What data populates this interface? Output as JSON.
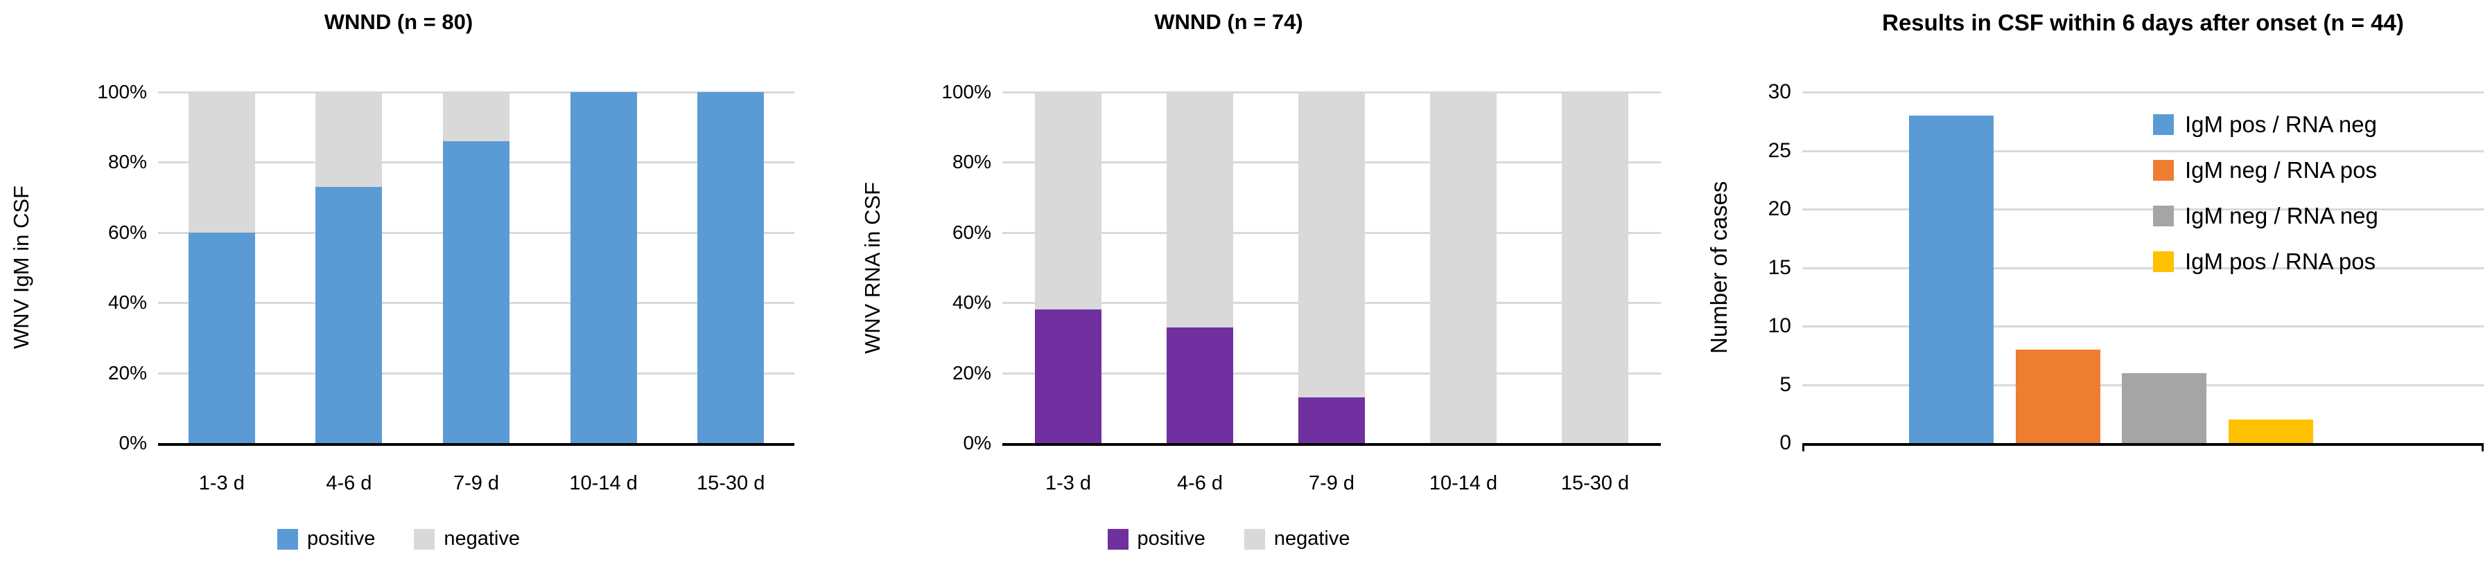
{
  "colors": {
    "background": "#FFFFFF",
    "axis": "#000000",
    "gridline": "#D9D9D9",
    "blue": "#5B9BD5",
    "purple": "#7030A0",
    "orange": "#ED7D31",
    "gray": "#A5A5A5",
    "yellow": "#FFC000",
    "light_gray": "#D9D9D9"
  },
  "chart_data": [
    {
      "type": "bar",
      "subtype": "stacked-percent",
      "title": "WNND (n = 80)",
      "ylabel": "WNV IgM in CSF",
      "xlabel": "",
      "categories": [
        "1-3 d",
        "4-6 d",
        "7-9 d",
        "10-14 d",
        "15-30 d"
      ],
      "series": [
        {
          "name": "positive",
          "color": "#5B9BD5",
          "values": [
            60,
            73,
            86,
            100,
            100
          ]
        },
        {
          "name": "negative",
          "color": "#D9D9D9",
          "values": [
            40,
            27,
            14,
            0,
            0
          ]
        }
      ],
      "yticks": [
        "0%",
        "20%",
        "40%",
        "60%",
        "80%",
        "100%"
      ],
      "ytick_values": [
        0,
        20,
        40,
        60,
        80,
        100
      ],
      "ylim": [
        0,
        100
      ],
      "grid": true,
      "legend_position": "bottom",
      "legend": [
        "positive",
        "negative"
      ]
    },
    {
      "type": "bar",
      "subtype": "stacked-percent",
      "title": "WNND (n = 74)",
      "ylabel": "WNV RNA in CSF",
      "xlabel": "",
      "categories": [
        "1-3 d",
        "4-6 d",
        "7-9 d",
        "10-14 d",
        "15-30 d"
      ],
      "series": [
        {
          "name": "positive",
          "color": "#7030A0",
          "values": [
            38,
            33,
            13,
            0,
            0
          ]
        },
        {
          "name": "negative",
          "color": "#D9D9D9",
          "values": [
            62,
            67,
            87,
            100,
            100
          ]
        }
      ],
      "yticks": [
        "0%",
        "20%",
        "40%",
        "60%",
        "80%",
        "100%"
      ],
      "ytick_values": [
        0,
        20,
        40,
        60,
        80,
        100
      ],
      "ylim": [
        0,
        100
      ],
      "grid": true,
      "legend_position": "bottom",
      "legend": [
        "positive",
        "negative"
      ]
    },
    {
      "type": "bar",
      "subtype": "simple",
      "title": "Results in CSF within 6 days after onset (n = 44)",
      "ylabel": "Number of cases",
      "xlabel": "",
      "bars": [
        {
          "label": "IgM pos / RNA neg",
          "color": "#5B9BD5",
          "value": 28
        },
        {
          "label": "IgM neg / RNA pos",
          "color": "#ED7D31",
          "value": 8
        },
        {
          "label": "IgM neg / RNA neg",
          "color": "#A5A5A5",
          "value": 6
        },
        {
          "label": "IgM pos / RNA pos",
          "color": "#FFC000",
          "value": 2
        }
      ],
      "yticks": [
        "0",
        "5",
        "10",
        "15",
        "20",
        "25",
        "30"
      ],
      "ytick_values": [
        0,
        5,
        10,
        15,
        20,
        25,
        30
      ],
      "ylim": [
        0,
        30
      ],
      "grid": true,
      "legend_position": "top-right-inside",
      "legend": [
        "IgM pos / RNA neg",
        "IgM neg / RNA pos",
        "IgM neg / RNA neg",
        "IgM pos / RNA pos"
      ]
    }
  ]
}
